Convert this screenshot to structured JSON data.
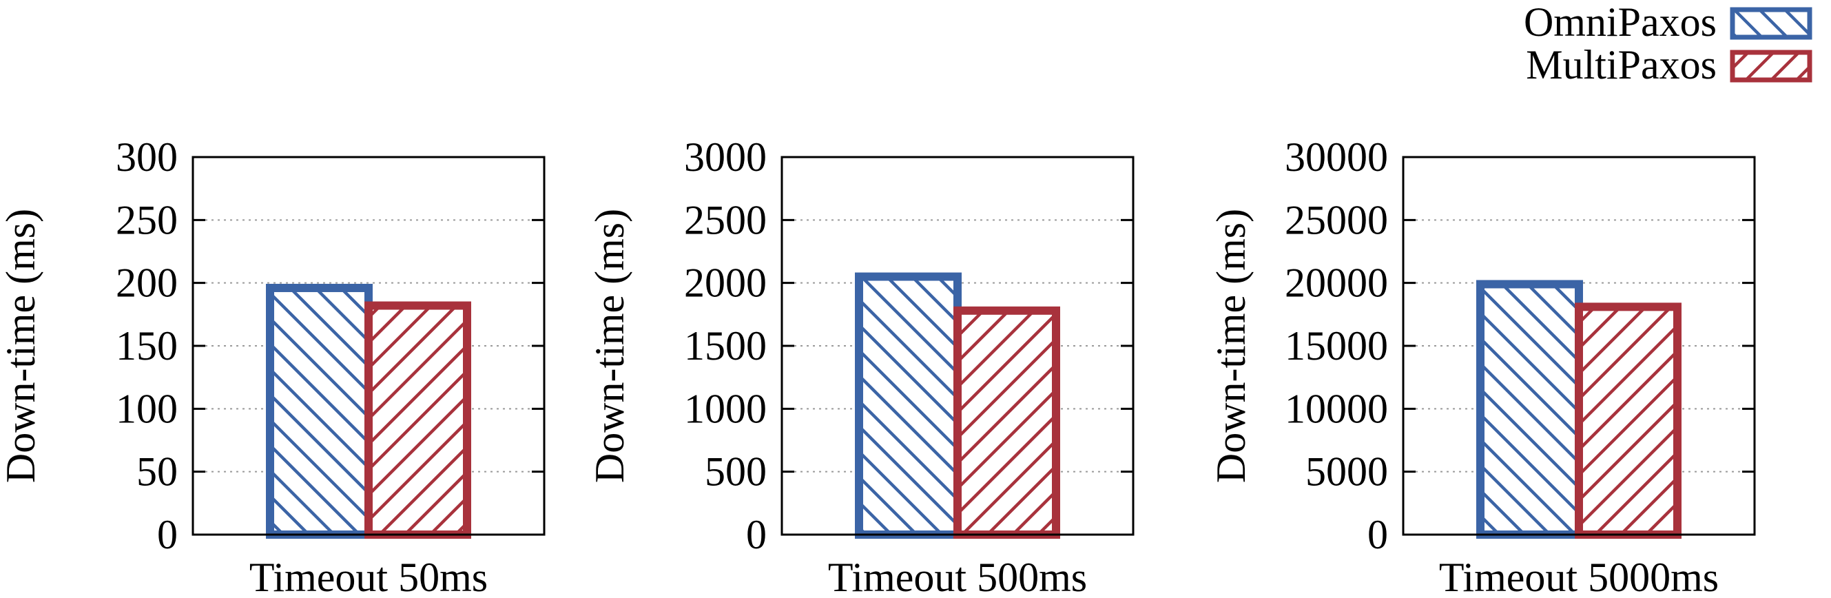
{
  "legend": {
    "placement": "top-right",
    "entries": [
      {
        "name": "OmniPaxos",
        "color": "#3b64a6",
        "hatch": "backslash"
      },
      {
        "name": "MultiPaxos",
        "color": "#a8323c",
        "hatch": "slash"
      }
    ]
  },
  "chart_data": [
    {
      "type": "bar",
      "categories": [
        "Timeout 50ms"
      ],
      "series": [
        {
          "name": "OmniPaxos",
          "values": [
            196
          ]
        },
        {
          "name": "MultiPaxos",
          "values": [
            182
          ]
        }
      ],
      "ylabel": "Down-time (ms)",
      "ylim": [
        0,
        300
      ],
      "yticks": [
        "0",
        "50",
        "100",
        "150",
        "200",
        "250",
        "300"
      ],
      "grid": "horizontal dotted"
    },
    {
      "type": "bar",
      "categories": [
        "Timeout 500ms"
      ],
      "series": [
        {
          "name": "OmniPaxos",
          "values": [
            2050
          ]
        },
        {
          "name": "MultiPaxos",
          "values": [
            1780
          ]
        }
      ],
      "ylabel": "Down-time (ms)",
      "ylim": [
        0,
        3000
      ],
      "yticks": [
        "0",
        "500",
        "1000",
        "1500",
        "2000",
        "2500",
        "3000"
      ],
      "grid": "horizontal dotted"
    },
    {
      "type": "bar",
      "categories": [
        "Timeout 5000ms"
      ],
      "series": [
        {
          "name": "OmniPaxos",
          "values": [
            19900
          ]
        },
        {
          "name": "MultiPaxos",
          "values": [
            18100
          ]
        }
      ],
      "ylabel": "Down-time (ms)",
      "ylim": [
        0,
        30000
      ],
      "yticks": [
        "0",
        "5000",
        "10000",
        "15000",
        "20000",
        "25000",
        "30000"
      ],
      "grid": "horizontal dotted"
    }
  ]
}
